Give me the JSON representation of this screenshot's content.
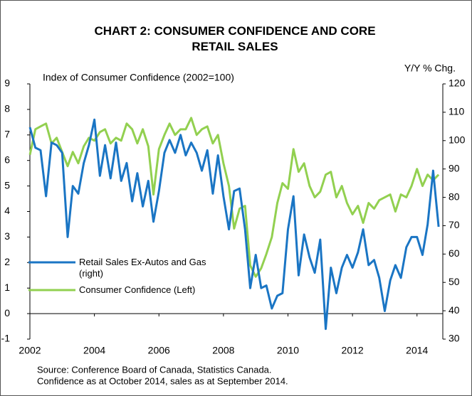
{
  "chart_data": {
    "type": "line",
    "title": "CHART 2: CONSUMER CONFIDENCE AND CORE RETAIL SALES",
    "ylabel": "Index of Consumer Confidence (2002=100)",
    "y2label": "Y/Y % Chg.",
    "source": "Source: Conference Board of Canada, Statistics Canada.",
    "note": "Confidence as at October 2014, sales as at September 2014.",
    "x": [
      2002.0,
      2002.17,
      2002.33,
      2002.5,
      2002.67,
      2002.83,
      2003.0,
      2003.17,
      2003.33,
      2003.5,
      2003.67,
      2003.83,
      2004.0,
      2004.17,
      2004.33,
      2004.5,
      2004.67,
      2004.83,
      2005.0,
      2005.17,
      2005.33,
      2005.5,
      2005.67,
      2005.83,
      2006.0,
      2006.17,
      2006.33,
      2006.5,
      2006.67,
      2006.83,
      2007.0,
      2007.17,
      2007.33,
      2007.5,
      2007.67,
      2007.83,
      2008.0,
      2008.17,
      2008.33,
      2008.5,
      2008.67,
      2008.83,
      2009.0,
      2009.17,
      2009.33,
      2009.5,
      2009.67,
      2009.83,
      2010.0,
      2010.17,
      2010.33,
      2010.5,
      2010.67,
      2010.83,
      2011.0,
      2011.17,
      2011.33,
      2011.5,
      2011.67,
      2011.83,
      2012.0,
      2012.17,
      2012.33,
      2012.5,
      2012.67,
      2012.83,
      2013.0,
      2013.17,
      2013.33,
      2013.5,
      2013.67,
      2013.83,
      2014.0,
      2014.17,
      2014.33,
      2014.5,
      2014.67
    ],
    "series": [
      {
        "name": "Retail Sales Ex-Autos and Gas (right)",
        "color": "#1a75c4",
        "values": [
          7.3,
          6.5,
          6.4,
          4.6,
          6.7,
          6.6,
          6.3,
          3.0,
          5.0,
          4.7,
          5.9,
          6.6,
          7.6,
          5.4,
          6.6,
          5.3,
          6.7,
          5.2,
          5.9,
          4.4,
          5.5,
          4.2,
          5.2,
          3.6,
          4.8,
          6.3,
          6.8,
          6.3,
          7.0,
          6.2,
          6.7,
          6.3,
          5.6,
          6.4,
          4.7,
          6.2,
          4.6,
          3.3,
          4.8,
          4.9,
          3.3,
          1.0,
          2.3,
          1.0,
          1.1,
          0.2,
          0.7,
          0.8,
          3.3,
          4.6,
          1.5,
          3.1,
          2.2,
          1.6,
          2.9,
          -0.6,
          1.8,
          0.8,
          1.8,
          2.3,
          1.8,
          2.4,
          3.3,
          1.9,
          2.1,
          1.4,
          0.1,
          1.3,
          1.9,
          1.4,
          2.6,
          3.0,
          3.0,
          2.3,
          3.5,
          5.6,
          3.4
        ]
      },
      {
        "name": "Consumer Confidence (Left)",
        "color": "#92d050",
        "axis": "y2",
        "values": [
          95,
          104,
          105,
          106,
          99,
          101,
          96,
          91,
          96,
          92,
          98,
          101,
          100,
          103,
          104,
          99,
          101,
          100,
          106,
          104,
          99,
          104,
          98,
          81,
          97,
          102,
          106,
          102,
          104,
          104,
          108,
          102,
          104,
          105,
          99,
          102,
          92,
          84,
          69,
          76,
          77,
          56,
          52,
          55,
          60,
          66,
          78,
          85,
          83,
          97,
          89,
          92,
          84,
          80,
          82,
          88,
          89,
          80,
          84,
          78,
          74,
          77,
          71,
          78,
          76,
          79,
          80,
          81,
          75,
          81,
          80,
          84,
          90,
          84,
          88,
          86,
          88
        ]
      }
    ],
    "xlim": [
      2002,
      2014.8
    ],
    "xticks": [
      2002,
      2004,
      2006,
      2008,
      2010,
      2012,
      2014
    ],
    "ylim": [
      -1,
      9
    ],
    "yticks": [
      -1,
      0,
      1,
      2,
      3,
      4,
      5,
      6,
      7,
      8,
      9
    ],
    "y2lim": [
      30,
      120
    ],
    "y2ticks": [
      30,
      40,
      50,
      60,
      70,
      80,
      90,
      100,
      110,
      120
    ]
  }
}
